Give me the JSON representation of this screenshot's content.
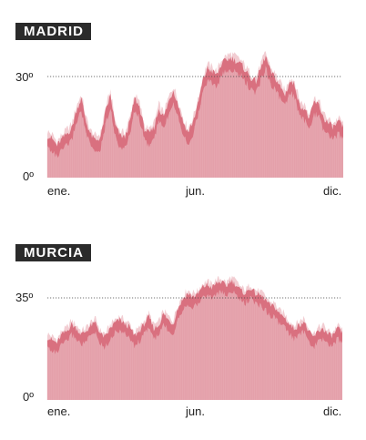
{
  "colors": {
    "light_band": "#f2cdd2",
    "main_fill": "#e4a0aa",
    "dark_peaks": "#d9707f",
    "label_bg": "#2b2b2b",
    "reference_line": "#444444"
  },
  "chart_data": [
    {
      "type": "area",
      "title": "MADRID",
      "x_ticks": [
        "ene.",
        "jun.",
        "dic."
      ],
      "y_ticks": [
        "0º",
        "30º"
      ],
      "reference_line": 30,
      "ylim": [
        0,
        36
      ],
      "days": 365,
      "series": [
        {
          "values": [
            11.0,
            10.0,
            8.0,
            10.0,
            11.5,
            13.0,
            18.5,
            22.0,
            15.0,
            11.0,
            9.5,
            10.5,
            18.0,
            23.0,
            14.0,
            11.0,
            10.5,
            15.0,
            22.0,
            19.5,
            13.0,
            11.5,
            13.5,
            19.0,
            16.5,
            21.0,
            24.5,
            20.0,
            15.0,
            12.0,
            15.0,
            20.0,
            27.0,
            31.0,
            30.0,
            29.0,
            32.5,
            33.5,
            34.0,
            33.0,
            32.0,
            30.0,
            28.0,
            27.0,
            31.0,
            34.5,
            30.0,
            28.0,
            25.5,
            23.0,
            27.0,
            26.0,
            20.0,
            19.0,
            16.0,
            21.0,
            20.0,
            16.0,
            14.5,
            13.5,
            15.0,
            13.5
          ]
        }
      ]
    },
    {
      "type": "area",
      "title": "MURCIA",
      "x_ticks": [
        "ene.",
        "jun.",
        "dic."
      ],
      "y_ticks": [
        "0º",
        "35º"
      ],
      "reference_line": 35,
      "ylim": [
        0,
        42
      ],
      "days": 365,
      "series": [
        {
          "values": [
            20.0,
            19.0,
            18.0,
            21.0,
            22.0,
            24.5,
            23.0,
            21.0,
            22.0,
            24.0,
            25.0,
            21.0,
            20.0,
            23.0,
            25.0,
            26.0,
            24.5,
            23.5,
            20.5,
            22.0,
            24.5,
            27.0,
            23.0,
            24.0,
            28.0,
            26.0,
            24.5,
            30.0,
            33.0,
            35.0,
            34.0,
            34.5,
            37.0,
            38.0,
            37.0,
            38.5,
            39.0,
            37.5,
            39.5,
            38.0,
            36.0,
            35.0,
            37.0,
            35.0,
            34.5,
            33.0,
            31.0,
            30.5,
            28.0,
            27.0,
            24.5,
            23.0,
            24.0,
            25.5,
            22.0,
            20.0,
            22.0,
            23.0,
            21.0,
            20.5,
            23.0,
            21.5
          ]
        }
      ]
    }
  ]
}
